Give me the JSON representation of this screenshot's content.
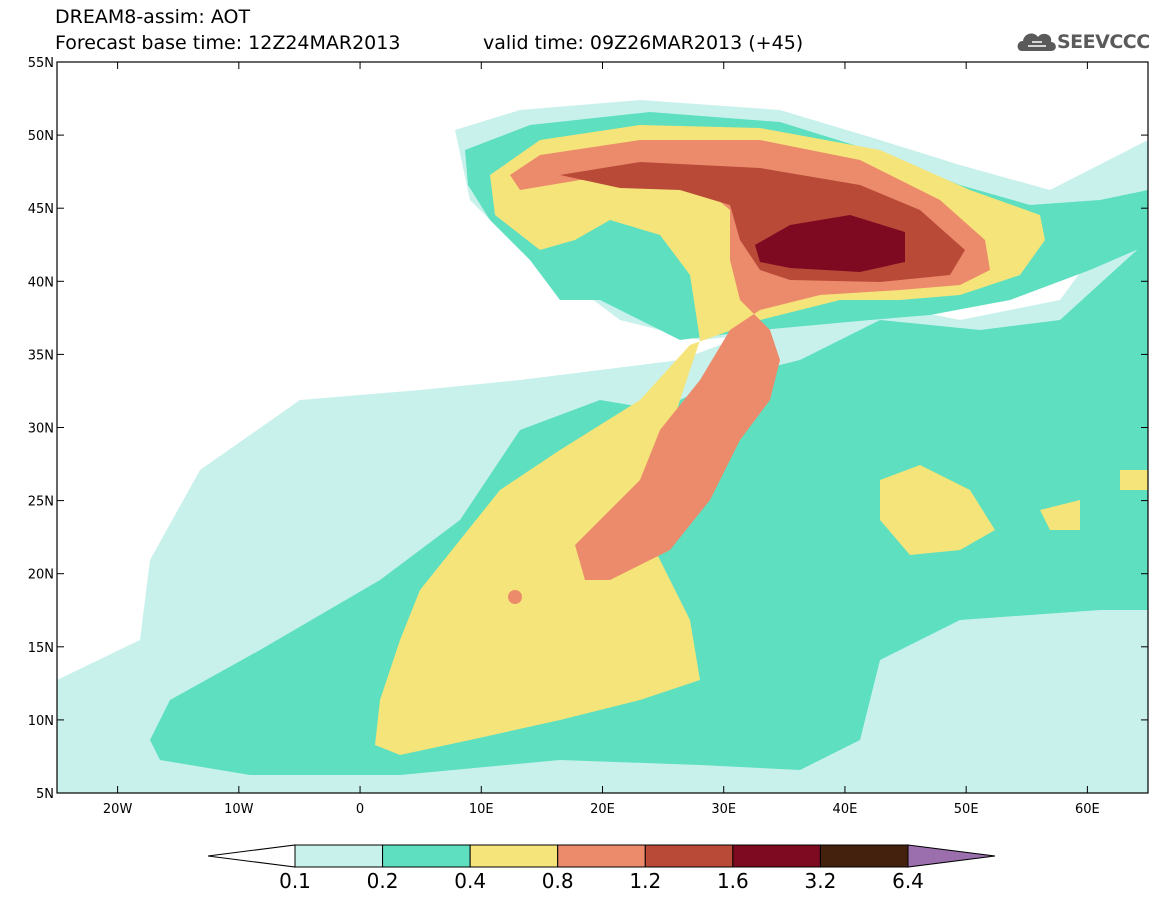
{
  "title": {
    "line1": "DREAM8-assim: AOT",
    "base_time": "Forecast base time: 12Z24MAR2013",
    "valid_time": "valid time: 09Z26MAR2013 (+45)"
  },
  "logo": {
    "text": "SEEVCCC",
    "icon": "cloud-icon"
  },
  "map": {
    "lon_range": [
      -25,
      65
    ],
    "lat_range": [
      5,
      55
    ],
    "lat_ticks": [
      {
        "value": 55,
        "label": "55N"
      },
      {
        "value": 50,
        "label": "50N"
      },
      {
        "value": 45,
        "label": "45N"
      },
      {
        "value": 40,
        "label": "40N"
      },
      {
        "value": 35,
        "label": "35N"
      },
      {
        "value": 30,
        "label": "30N"
      },
      {
        "value": 25,
        "label": "25N"
      },
      {
        "value": 20,
        "label": "20N"
      },
      {
        "value": 15,
        "label": "15N"
      },
      {
        "value": 10,
        "label": "10N"
      },
      {
        "value": 5,
        "label": "5N"
      }
    ],
    "lon_ticks": [
      {
        "value": -20,
        "label": "20W"
      },
      {
        "value": -10,
        "label": "10W"
      },
      {
        "value": 0,
        "label": "0"
      },
      {
        "value": 10,
        "label": "10E"
      },
      {
        "value": 20,
        "label": "20E"
      },
      {
        "value": 30,
        "label": "30E"
      },
      {
        "value": 40,
        "label": "40E"
      },
      {
        "value": 50,
        "label": "50E"
      },
      {
        "value": 60,
        "label": "60E"
      }
    ]
  },
  "colorbar": {
    "levels": [
      "0.1",
      "0.2",
      "0.4",
      "0.8",
      "1.2",
      "1.6",
      "3.2",
      "6.4"
    ],
    "colors": [
      "#ffffff",
      "#c8f1ec",
      "#5ddfc0",
      "#f5e47a",
      "#ec8b6b",
      "#b94a38",
      "#7e0a22",
      "#43210d",
      "#9b6fad"
    ]
  }
}
